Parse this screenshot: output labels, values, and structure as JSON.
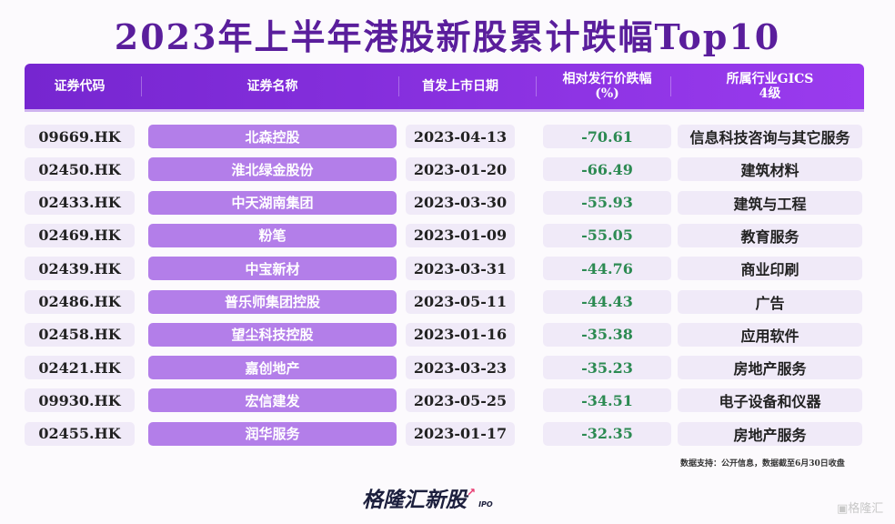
{
  "title": "2023年上半年港股新股累计跌幅Top10",
  "chart_data": {
    "type": "table",
    "title": "2023年上半年港股新股累计跌幅Top10",
    "columns": [
      "证券代码",
      "证券名称",
      "首发上市日期",
      "相对发行价跌幅\n(%)",
      "所属行业GICS\n4级"
    ],
    "rows": [
      [
        "09669.HK",
        "北森控股",
        "2023-04-13",
        "-70.61",
        "信息科技咨询与其它服务"
      ],
      [
        "02450.HK",
        "淮北绿金股份",
        "2023-01-20",
        "-66.49",
        "建筑材料"
      ],
      [
        "02433.HK",
        "中天湖南集团",
        "2023-03-30",
        "-55.93",
        "建筑与工程"
      ],
      [
        "02469.HK",
        "粉笔",
        "2023-01-09",
        "-55.05",
        "教育服务"
      ],
      [
        "02439.HK",
        "中宝新材",
        "2023-03-31",
        "-44.76",
        "商业印刷"
      ],
      [
        "02486.HK",
        "普乐师集团控股",
        "2023-05-11",
        "-44.43",
        "广告"
      ],
      [
        "02458.HK",
        "望尘科技控股",
        "2023-01-16",
        "-35.38",
        "应用软件"
      ],
      [
        "02421.HK",
        "嘉创地产",
        "2023-03-23",
        "-35.23",
        "房地产服务"
      ],
      [
        "09930.HK",
        "宏信建发",
        "2023-05-25",
        "-34.51",
        "电子设备和仪器"
      ],
      [
        "02455.HK",
        "润华服务",
        "2023-01-17",
        "-32.35",
        "房地产服务"
      ]
    ],
    "colors": {
      "header": "#7a2bd6",
      "name_cell": "#b37ee9",
      "pct_text": "#2c8a52",
      "title": "#5a1e9c"
    }
  },
  "source": "数据支持：公开信息，数据截至6月30日收盘",
  "logo": {
    "text": "格隆汇新股",
    "sub": "IPO"
  },
  "watermark": "格隆汇"
}
